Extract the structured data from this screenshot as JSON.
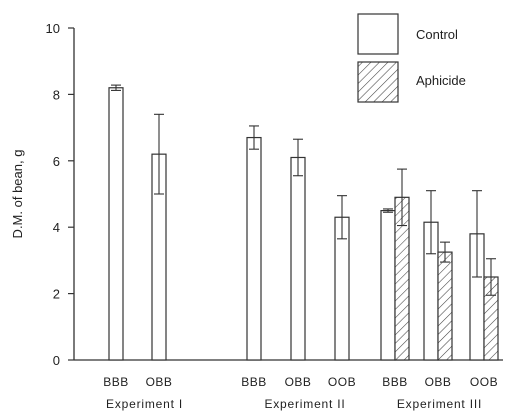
{
  "chart_data": {
    "type": "bar",
    "ylabel": "D.M. of bean, g",
    "ylim": [
      0,
      10
    ],
    "yticks": [
      0,
      2,
      4,
      6,
      8,
      10
    ],
    "grid": false,
    "legend_position": "top-right",
    "series": [
      {
        "name": "Control",
        "pattern": "none"
      },
      {
        "name": "Aphicide",
        "pattern": "hatched"
      }
    ],
    "groups": [
      "Experiment I",
      "Experiment II",
      "Experiment III"
    ],
    "bars": [
      {
        "category": "BBB",
        "group": "Experiment I",
        "series": "Control",
        "value": 8.2,
        "error": 0.08
      },
      {
        "category": "OBB",
        "group": "Experiment I",
        "series": "Control",
        "value": 6.2,
        "error": 1.2
      },
      {
        "category": "BBB",
        "group": "Experiment II",
        "series": "Control",
        "value": 6.7,
        "error": 0.35
      },
      {
        "category": "OBB",
        "group": "Experiment II",
        "series": "Control",
        "value": 6.1,
        "error": 0.55
      },
      {
        "category": "OOB",
        "group": "Experiment II",
        "series": "Control",
        "value": 4.3,
        "error": 0.65
      },
      {
        "category": "BBB",
        "group": "Experiment III",
        "series": "Control",
        "value": 4.5,
        "error": 0.05
      },
      {
        "category": "BBB",
        "group": "Experiment III",
        "series": "Aphicide",
        "value": 4.9,
        "error": 0.85
      },
      {
        "category": "OBB",
        "group": "Experiment III",
        "series": "Control",
        "value": 4.15,
        "error": 0.95
      },
      {
        "category": "OBB",
        "group": "Experiment III",
        "series": "Aphicide",
        "value": 3.25,
        "error": 0.3
      },
      {
        "category": "OOB",
        "group": "Experiment III",
        "series": "Control",
        "value": 3.8,
        "error": 1.3
      },
      {
        "category": "OOB",
        "group": "Experiment III",
        "series": "Aphicide",
        "value": 2.5,
        "error": 0.55
      }
    ]
  }
}
